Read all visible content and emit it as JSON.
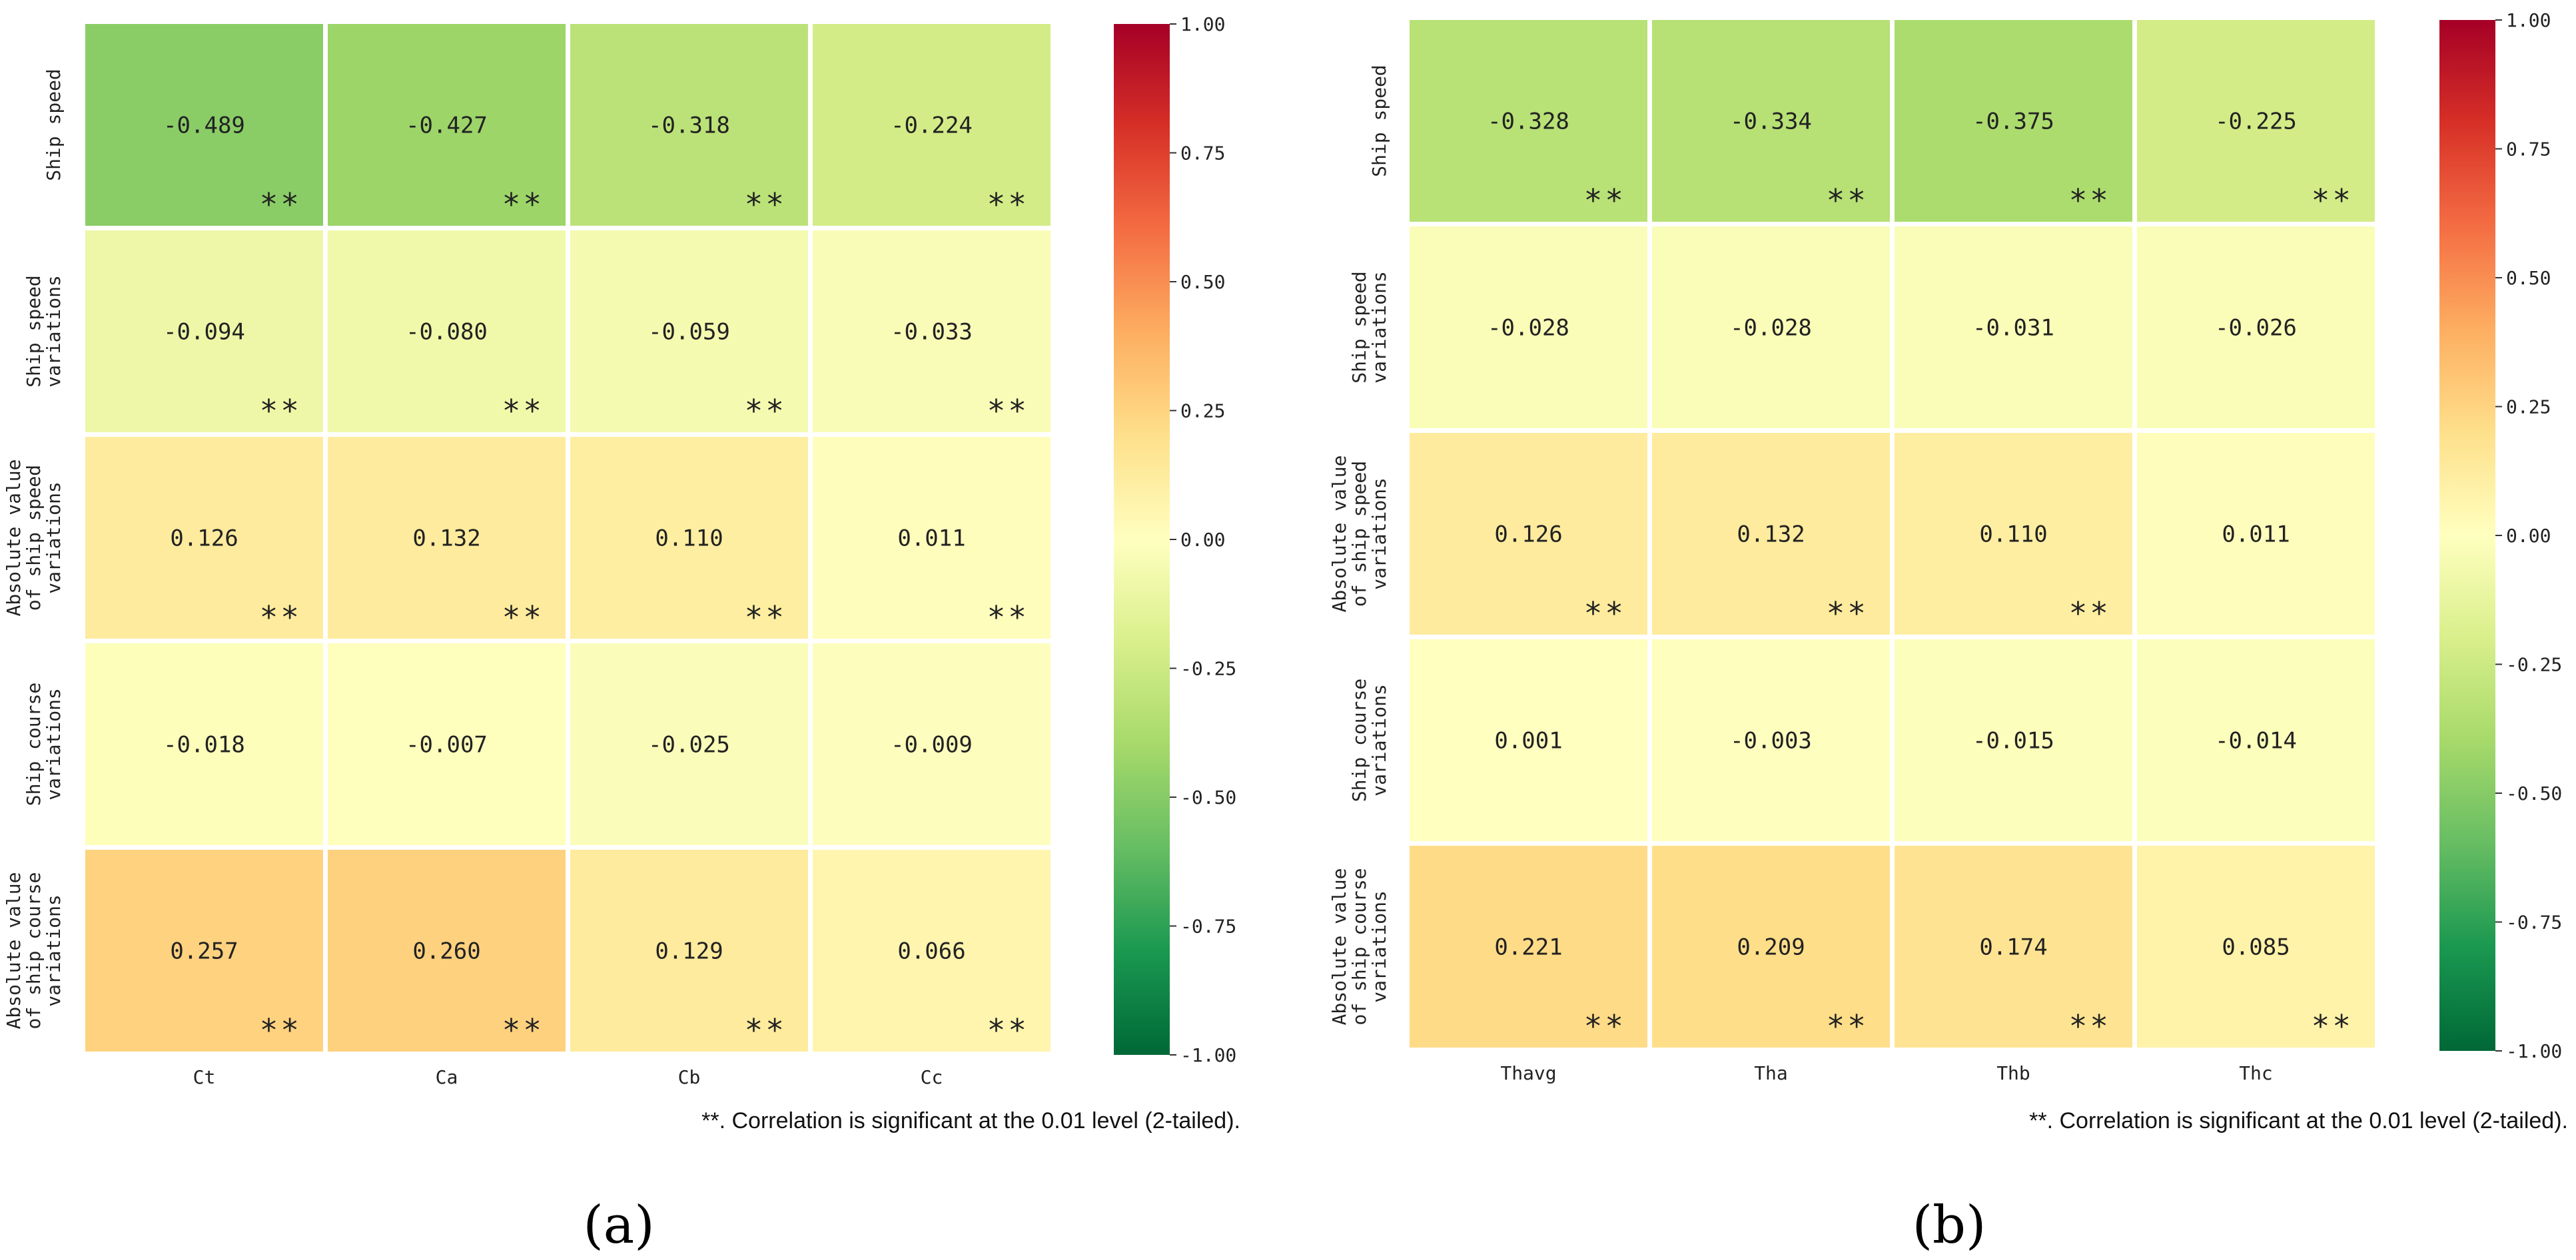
{
  "chart_data": [
    {
      "type": "heatmap",
      "panel_label": "(a)",
      "rows": [
        [
          "Ship speed"
        ],
        [
          "Ship speed",
          "variations"
        ],
        [
          "Absolute value",
          "of ship speed",
          "variations"
        ],
        [
          "Ship course",
          "variations"
        ],
        [
          "Absolute value",
          "of ship course",
          "variations"
        ]
      ],
      "columns": [
        "Ct",
        "Ca",
        "Cb",
        "Cc"
      ],
      "values": [
        [
          -0.489,
          -0.427,
          -0.318,
          -0.224
        ],
        [
          -0.094,
          -0.08,
          -0.059,
          -0.033
        ],
        [
          0.126,
          0.132,
          0.11,
          0.011
        ],
        [
          -0.018,
          -0.007,
          -0.025,
          -0.009
        ],
        [
          0.257,
          0.26,
          0.129,
          0.066
        ]
      ],
      "value_labels": [
        [
          "-0.489",
          "-0.427",
          "-0.318",
          "-0.224"
        ],
        [
          "-0.094",
          "-0.080",
          "-0.059",
          "-0.033"
        ],
        [
          "0.126",
          "0.132",
          "0.110",
          "0.011"
        ],
        [
          "-0.018",
          "-0.007",
          "-0.025",
          "-0.009"
        ],
        [
          "0.257",
          "0.260",
          "0.129",
          "0.066"
        ]
      ],
      "significance": [
        [
          "**",
          "**",
          "**",
          "**"
        ],
        [
          "**",
          "**",
          "**",
          "**"
        ],
        [
          "**",
          "**",
          "**",
          "**"
        ],
        [
          "",
          "",
          "",
          ""
        ],
        [
          "**",
          "**",
          "**",
          "**"
        ]
      ],
      "colorbar": {
        "range": [
          -1.0,
          1.0
        ],
        "ticks": [
          "1.00",
          "0.75",
          "0.50",
          "0.25",
          "0.00",
          "-0.25",
          "-0.50",
          "-0.75",
          "-1.00"
        ],
        "colormap": "RdYlGn_r"
      },
      "note": "**. Correlation is significant at the 0.01 level (2-tailed)."
    },
    {
      "type": "heatmap",
      "panel_label": "(b)",
      "rows": [
        [
          "Ship speed"
        ],
        [
          "Ship speed",
          "variations"
        ],
        [
          "Absolute value",
          "of ship speed",
          "variations"
        ],
        [
          "Ship course",
          "variations"
        ],
        [
          "Absolute value",
          "of ship course",
          "variations"
        ]
      ],
      "columns": [
        "Thavg",
        "Tha",
        "Thb",
        "Thc"
      ],
      "values": [
        [
          -0.328,
          -0.334,
          -0.375,
          -0.225
        ],
        [
          -0.028,
          -0.028,
          -0.031,
          -0.026
        ],
        [
          0.126,
          0.132,
          0.11,
          0.011
        ],
        [
          0.001,
          -0.003,
          -0.015,
          -0.014
        ],
        [
          0.221,
          0.209,
          0.174,
          0.085
        ]
      ],
      "value_labels": [
        [
          "-0.328",
          "-0.334",
          "-0.375",
          "-0.225"
        ],
        [
          "-0.028",
          "-0.028",
          "-0.031",
          "-0.026"
        ],
        [
          "0.126",
          "0.132",
          "0.110",
          "0.011"
        ],
        [
          "0.001",
          "-0.003",
          "-0.015",
          "-0.014"
        ],
        [
          "0.221",
          "0.209",
          "0.174",
          "0.085"
        ]
      ],
      "significance": [
        [
          "**",
          "**",
          "**",
          "**"
        ],
        [
          "",
          "",
          "",
          ""
        ],
        [
          "**",
          "**",
          "**",
          ""
        ],
        [
          "",
          "",
          "",
          ""
        ],
        [
          "**",
          "**",
          "**",
          "**"
        ]
      ],
      "colorbar": {
        "range": [
          -1.0,
          1.0
        ],
        "ticks": [
          "1.00",
          "0.75",
          "0.50",
          "0.25",
          "0.00",
          "-0.25",
          "-0.50",
          "-0.75",
          "-1.00"
        ],
        "colormap": "RdYlGn_r"
      },
      "note": "**. Correlation is significant at the 0.01 level (2-tailed)."
    }
  ]
}
